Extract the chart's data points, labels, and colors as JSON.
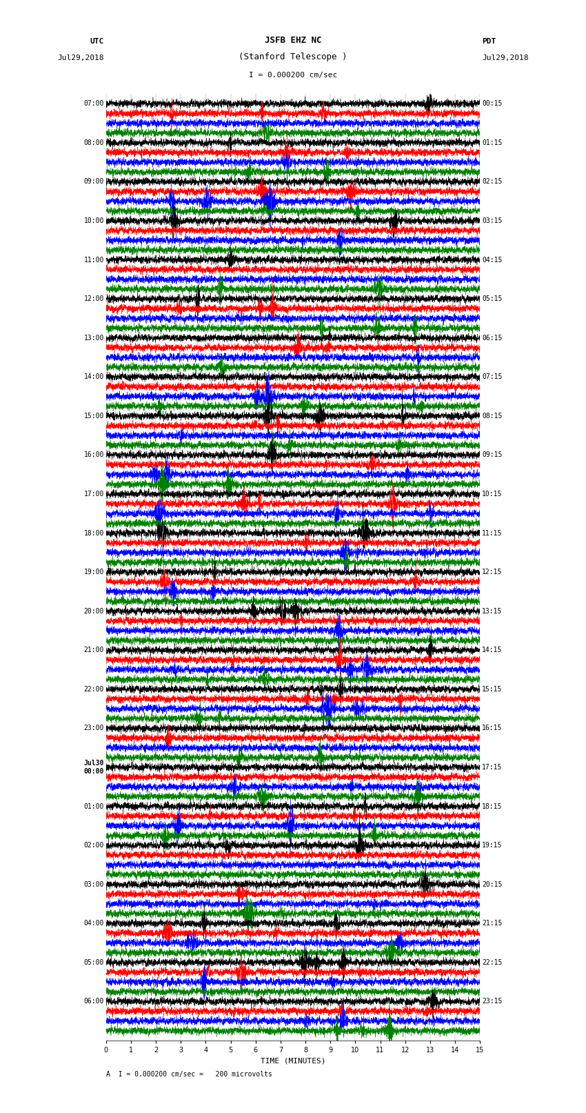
{
  "title_line1": "JSFB EHZ NC",
  "title_line2": "(Stanford Telescope )",
  "scale_label": "I = 0.000200 cm/sec",
  "footer_label": "A  I = 0.000200 cm/sec =   200 microvolts",
  "utc_label": "UTC",
  "utc_date": "Jul29,2018",
  "pdt_label": "PDT",
  "pdt_date": "Jul29,2018",
  "xlabel": "TIME (MINUTES)",
  "left_times_utc": [
    "07:00",
    "",
    "",
    "",
    "08:00",
    "",
    "",
    "",
    "09:00",
    "",
    "",
    "",
    "10:00",
    "",
    "",
    "",
    "11:00",
    "",
    "",
    "",
    "12:00",
    "",
    "",
    "",
    "13:00",
    "",
    "",
    "",
    "14:00",
    "",
    "",
    "",
    "15:00",
    "",
    "",
    "",
    "16:00",
    "",
    "",
    "",
    "17:00",
    "",
    "",
    "",
    "18:00",
    "",
    "",
    "",
    "19:00",
    "",
    "",
    "",
    "20:00",
    "",
    "",
    "",
    "21:00",
    "",
    "",
    "",
    "22:00",
    "",
    "",
    "",
    "23:00",
    "",
    "",
    "",
    "Jul30\n00:00",
    "",
    "",
    "",
    "01:00",
    "",
    "",
    "",
    "02:00",
    "",
    "",
    "",
    "03:00",
    "",
    "",
    "",
    "04:00",
    "",
    "",
    "",
    "05:00",
    "",
    "",
    "",
    "06:00",
    "",
    "",
    ""
  ],
  "right_times_pdt": [
    "00:15",
    "",
    "",
    "",
    "01:15",
    "",
    "",
    "",
    "02:15",
    "",
    "",
    "",
    "03:15",
    "",
    "",
    "",
    "04:15",
    "",
    "",
    "",
    "05:15",
    "",
    "",
    "",
    "06:15",
    "",
    "",
    "",
    "07:15",
    "",
    "",
    "",
    "08:15",
    "",
    "",
    "",
    "09:15",
    "",
    "",
    "",
    "10:15",
    "",
    "",
    "",
    "11:15",
    "",
    "",
    "",
    "12:15",
    "",
    "",
    "",
    "13:15",
    "",
    "",
    "",
    "14:15",
    "",
    "",
    "",
    "15:15",
    "",
    "",
    "",
    "16:15",
    "",
    "",
    "",
    "17:15",
    "",
    "",
    "",
    "18:15",
    "",
    "",
    "",
    "19:15",
    "",
    "",
    "",
    "20:15",
    "",
    "",
    "",
    "21:15",
    "",
    "",
    "",
    "22:15",
    "",
    "",
    "",
    "23:15",
    "",
    "",
    ""
  ],
  "colors": [
    "black",
    "red",
    "blue",
    "green"
  ],
  "n_rows": 96,
  "n_points": 4500,
  "time_range": [
    0,
    15
  ],
  "background_color": "white",
  "line_width": 0.3,
  "amplitude_scale": 0.35,
  "figsize": [
    8.5,
    16.13
  ],
  "dpi": 100,
  "font_size_title": 9,
  "font_size_labels": 8,
  "font_size_ticks": 7,
  "font_size_footer": 7,
  "grid_color": "#888888",
  "grid_lw": 0.3
}
